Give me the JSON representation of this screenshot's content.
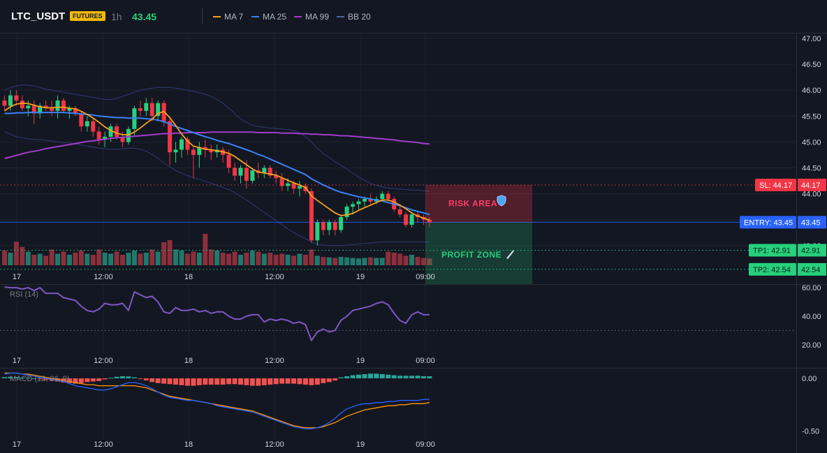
{
  "header": {
    "symbol": "LTC_USDT",
    "badge": "FUTURES",
    "timeframe": "1h",
    "price": "43.45",
    "legend": [
      {
        "label": "MA 7",
        "color": "#f7a21b"
      },
      {
        "label": "MA 25",
        "color": "#3b82f6"
      },
      {
        "label": "MA 99",
        "color": "#a23dc9"
      },
      {
        "label": "BB 20",
        "color": "#3a4a8c"
      }
    ]
  },
  "colors": {
    "background": "#131722",
    "up": "#26d07c",
    "down": "#f23645",
    "volume_up": "#1f7a6e",
    "volume_down": "#8c2f3c",
    "entry": "#2962ff",
    "sl": "#f23645",
    "tp": "#26d07c",
    "rsi": "#7e57c2",
    "macd_line": "#2962ff",
    "signal_line": "#ff9800",
    "hist_pos": "#26a69a",
    "hist_neg": "#ef5350"
  },
  "annotations": {
    "risk_label": "RISK AREA",
    "risk_icon": "shield-icon",
    "profit_label": "PROFIT ZONE",
    "profit_icon": "rocket-icon"
  },
  "chart_data": [
    {
      "type": "candlestick",
      "title": "LTC_USDT",
      "x_ticks": [
        "17",
        "12:00",
        "18",
        "12:00",
        "19",
        "09:00"
      ],
      "y_ticks": [
        "47.00",
        "46.50",
        "46.00",
        "45.50",
        "45.00",
        "44.50",
        "44.00",
        "43.50",
        "43.00"
      ],
      "ylim": [
        42.62,
        47.08
      ],
      "ohlc": [
        [
          45.8,
          45.9,
          45.6,
          45.7
        ],
        [
          45.7,
          46.0,
          45.6,
          45.9
        ],
        [
          45.9,
          46.0,
          45.7,
          45.8
        ],
        [
          45.8,
          45.9,
          45.6,
          45.65
        ],
        [
          45.65,
          45.8,
          45.5,
          45.7
        ],
        [
          45.7,
          45.8,
          45.35,
          45.55
        ],
        [
          45.55,
          45.75,
          45.45,
          45.7
        ],
        [
          45.7,
          45.8,
          45.6,
          45.65
        ],
        [
          45.65,
          45.8,
          45.5,
          45.6
        ],
        [
          45.6,
          45.9,
          45.45,
          45.8
        ],
        [
          45.8,
          45.85,
          45.55,
          45.6
        ],
        [
          45.6,
          45.7,
          45.45,
          45.65
        ],
        [
          45.65,
          45.7,
          45.5,
          45.55
        ],
        [
          45.55,
          45.6,
          45.2,
          45.3
        ],
        [
          45.3,
          45.5,
          45.2,
          45.4
        ],
        [
          45.4,
          45.45,
          45.1,
          45.2
        ],
        [
          45.2,
          45.3,
          44.95,
          45.05
        ],
        [
          45.05,
          45.2,
          44.9,
          45.1
        ],
        [
          45.1,
          45.35,
          45.0,
          45.3
        ],
        [
          45.3,
          45.35,
          45.05,
          45.1
        ],
        [
          45.1,
          45.2,
          44.9,
          45.0
        ],
        [
          45.0,
          45.3,
          44.95,
          45.25
        ],
        [
          45.25,
          45.7,
          45.1,
          45.65
        ],
        [
          45.65,
          45.8,
          45.5,
          45.6
        ],
        [
          45.6,
          45.85,
          45.5,
          45.75
        ],
        [
          45.75,
          45.85,
          45.4,
          45.5
        ],
        [
          45.5,
          45.8,
          45.4,
          45.75
        ],
        [
          45.75,
          45.8,
          45.3,
          45.4
        ],
        [
          45.4,
          45.5,
          44.55,
          44.8
        ],
        [
          44.8,
          45.0,
          44.6,
          44.85
        ],
        [
          44.85,
          45.1,
          44.7,
          45.05
        ],
        [
          45.05,
          45.1,
          44.75,
          44.85
        ],
        [
          44.85,
          44.9,
          44.3,
          44.75
        ],
        [
          44.75,
          45.0,
          44.5,
          44.9
        ],
        [
          44.9,
          45.05,
          44.7,
          44.85
        ],
        [
          44.85,
          44.95,
          44.65,
          44.8
        ],
        [
          44.8,
          44.95,
          44.7,
          44.85
        ],
        [
          44.85,
          44.9,
          44.6,
          44.75
        ],
        [
          44.75,
          44.85,
          44.4,
          44.5
        ],
        [
          44.5,
          44.6,
          44.25,
          44.35
        ],
        [
          44.35,
          44.55,
          44.2,
          44.5
        ],
        [
          44.5,
          44.65,
          44.1,
          44.25
        ],
        [
          44.25,
          44.5,
          44.2,
          44.45
        ],
        [
          44.45,
          44.6,
          44.3,
          44.4
        ],
        [
          44.4,
          44.55,
          44.3,
          44.5
        ],
        [
          44.5,
          44.55,
          44.3,
          44.35
        ],
        [
          44.35,
          44.45,
          44.2,
          44.3
        ],
        [
          44.3,
          44.4,
          44.05,
          44.15
        ],
        [
          44.15,
          44.3,
          44.05,
          44.2
        ],
        [
          44.2,
          44.25,
          44.0,
          44.1
        ],
        [
          44.1,
          44.25,
          43.95,
          44.15
        ],
        [
          44.15,
          44.2,
          44.0,
          44.05
        ],
        [
          44.05,
          44.1,
          43.05,
          43.1
        ],
        [
          43.1,
          43.5,
          43.0,
          43.45
        ],
        [
          43.45,
          43.5,
          43.2,
          43.3
        ],
        [
          43.3,
          43.5,
          43.2,
          43.45
        ],
        [
          43.45,
          43.5,
          43.2,
          43.3
        ],
        [
          43.3,
          43.6,
          43.25,
          43.55
        ],
        [
          43.55,
          43.8,
          43.5,
          43.75
        ],
        [
          43.75,
          43.85,
          43.6,
          43.8
        ],
        [
          43.8,
          43.9,
          43.7,
          43.85
        ],
        [
          43.85,
          43.95,
          43.75,
          43.9
        ],
        [
          43.9,
          44.0,
          43.8,
          43.85
        ],
        [
          43.85,
          43.95,
          43.8,
          43.9
        ],
        [
          43.9,
          44.05,
          43.85,
          44.0
        ],
        [
          44.0,
          44.05,
          43.85,
          43.9
        ],
        [
          43.9,
          43.95,
          43.65,
          43.7
        ],
        [
          43.7,
          43.8,
          43.55,
          43.6
        ],
        [
          43.6,
          43.65,
          43.35,
          43.4
        ],
        [
          43.4,
          43.65,
          43.35,
          43.6
        ],
        [
          43.6,
          43.65,
          43.45,
          43.55
        ],
        [
          43.55,
          43.6,
          43.4,
          43.5
        ],
        [
          43.5,
          43.55,
          43.35,
          43.45
        ]
      ],
      "volume": [
        28,
        24,
        45,
        35,
        26,
        20,
        22,
        18,
        30,
        22,
        26,
        20,
        24,
        28,
        22,
        20,
        30,
        24,
        22,
        26,
        20,
        24,
        28,
        22,
        24,
        30,
        26,
        44,
        48,
        30,
        28,
        22,
        26,
        24,
        60,
        30,
        28,
        24,
        22,
        26,
        20,
        24,
        28,
        26,
        22,
        24,
        20,
        22,
        20,
        18,
        22,
        20,
        30,
        18,
        16,
        15,
        14,
        16,
        15,
        14,
        13,
        14,
        15,
        14,
        14,
        26,
        24,
        22,
        18,
        20,
        16,
        14,
        13
      ],
      "ma7": [
        45.6,
        45.68,
        45.73,
        45.75,
        45.74,
        45.71,
        45.68,
        45.66,
        45.66,
        45.67,
        45.67,
        45.65,
        45.64,
        45.59,
        45.53,
        45.46,
        45.38,
        45.29,
        45.22,
        45.17,
        45.14,
        45.14,
        45.19,
        45.27,
        45.36,
        45.44,
        45.55,
        45.59,
        45.47,
        45.32,
        45.15,
        45.02,
        44.92,
        44.89,
        44.86,
        44.85,
        44.83,
        44.81,
        44.78,
        44.72,
        44.64,
        44.56,
        44.48,
        44.42,
        44.4,
        44.38,
        44.36,
        44.31,
        44.26,
        44.21,
        44.17,
        44.12,
        43.96,
        43.87,
        43.79,
        43.71,
        43.63,
        43.58,
        43.59,
        43.62,
        43.68,
        43.73,
        43.78,
        43.83,
        43.88,
        43.88,
        43.84,
        43.78,
        43.71,
        43.63,
        43.57,
        43.53,
        43.49
      ],
      "ma25": [
        45.55,
        45.55,
        45.56,
        45.56,
        45.57,
        45.57,
        45.57,
        45.57,
        45.57,
        45.57,
        45.57,
        45.56,
        45.55,
        45.54,
        45.53,
        45.52,
        45.5,
        45.49,
        45.48,
        45.47,
        45.47,
        45.46,
        45.46,
        45.46,
        45.45,
        45.44,
        45.42,
        45.39,
        45.35,
        45.3,
        45.26,
        45.22,
        45.18,
        45.14,
        45.1,
        45.07,
        45.03,
        45.0,
        44.97,
        44.93,
        44.89,
        44.85,
        44.81,
        44.76,
        44.72,
        44.67,
        44.62,
        44.57,
        44.52,
        44.47,
        44.42,
        44.37,
        44.29,
        44.23,
        44.17,
        44.12,
        44.07,
        44.03,
        44.0,
        43.97,
        43.94,
        43.92,
        43.9,
        43.88,
        43.86,
        43.83,
        43.8,
        43.77,
        43.73,
        43.69,
        43.66,
        43.63,
        43.6
      ],
      "ma99": [
        44.68,
        44.71,
        44.74,
        44.77,
        44.8,
        44.82,
        44.84,
        44.87,
        44.89,
        44.91,
        44.93,
        44.95,
        44.97,
        44.99,
        45.01,
        45.02,
        45.04,
        45.05,
        45.07,
        45.08,
        45.09,
        45.1,
        45.11,
        45.12,
        45.13,
        45.14,
        45.15,
        45.16,
        45.16,
        45.17,
        45.17,
        45.18,
        45.18,
        45.18,
        45.18,
        45.19,
        45.19,
        45.19,
        45.19,
        45.19,
        45.19,
        45.19,
        45.19,
        45.18,
        45.18,
        45.18,
        45.18,
        45.17,
        45.17,
        45.17,
        45.16,
        45.16,
        45.15,
        45.15,
        45.14,
        45.14,
        45.13,
        45.12,
        45.12,
        45.11,
        45.1,
        45.09,
        45.08,
        45.07,
        45.06,
        45.05,
        45.04,
        45.02,
        45.01,
        45.0,
        44.99,
        44.97,
        44.96
      ],
      "bb_upper": [
        46.0,
        46.05,
        46.08,
        46.1,
        46.1,
        46.08,
        46.05,
        46.02,
        46.0,
        45.98,
        45.96,
        45.94,
        45.92,
        45.9,
        45.88,
        45.86,
        45.84,
        45.82,
        45.82,
        45.84,
        45.88,
        45.92,
        45.96,
        46.0,
        46.02,
        46.04,
        46.05,
        46.05,
        46.05,
        46.04,
        46.02,
        46.0,
        45.98,
        45.95,
        45.92,
        45.88,
        45.82,
        45.75,
        45.65,
        45.55,
        45.45,
        45.38,
        45.32,
        45.3,
        45.28,
        45.27,
        45.26,
        45.25,
        45.24,
        45.22,
        45.18,
        45.1,
        45.0,
        44.88,
        44.78,
        44.7,
        44.62,
        44.55,
        44.48,
        44.4,
        44.32,
        44.26,
        44.2,
        44.16,
        44.13,
        44.11,
        44.1,
        44.09,
        44.08,
        44.07,
        44.07,
        44.06,
        44.05
      ],
      "bb_lower": [
        45.2,
        45.15,
        45.1,
        45.08,
        45.06,
        45.05,
        45.04,
        45.03,
        45.02,
        45.0,
        44.99,
        44.98,
        44.96,
        44.94,
        44.92,
        44.9,
        44.88,
        44.87,
        44.86,
        44.86,
        44.87,
        44.88,
        44.88,
        44.86,
        44.82,
        44.76,
        44.68,
        44.6,
        44.52,
        44.45,
        44.4,
        44.35,
        44.31,
        44.28,
        44.24,
        44.2,
        44.16,
        44.12,
        44.08,
        44.02,
        43.95,
        43.88,
        43.8,
        43.72,
        43.64,
        43.56,
        43.48,
        43.4,
        43.32,
        43.25,
        43.19,
        43.13,
        43.07,
        43.03,
        43.01,
        43.0,
        43.0,
        43.0,
        43.01,
        43.02,
        43.03,
        43.04,
        43.05,
        43.06,
        43.07,
        43.07,
        43.07,
        43.07,
        43.07,
        43.07,
        43.07,
        43.07,
        43.07
      ],
      "levels": [
        {
          "name": "SL",
          "label": "SL: 44.17",
          "value": 44.17,
          "axis_label": "44.17"
        },
        {
          "name": "ENTRY",
          "label": "ENTRY: 43.45",
          "value": 43.45,
          "axis_label": "43.45"
        },
        {
          "name": "TP1",
          "label": "TP1: 42.91",
          "value": 42.91,
          "axis_label": "42.91"
        },
        {
          "name": "TP2",
          "label": "TP2: 42.54",
          "value": 42.54,
          "axis_label": "42.54"
        }
      ]
    },
    {
      "type": "line",
      "title": "RSI (14)",
      "x_ticks": [
        "17",
        "12:00",
        "18",
        "12:00",
        "19",
        "09:00"
      ],
      "y_ticks": [
        "60.00",
        "40.00",
        "20.00"
      ],
      "ylim": [
        17,
        62
      ],
      "reference": 30,
      "values": [
        60.5,
        60,
        60,
        59,
        60,
        58,
        60,
        56,
        56,
        56,
        53,
        52,
        51,
        47,
        44,
        43,
        45,
        49,
        48,
        48,
        49,
        44,
        57,
        55,
        53,
        54,
        50,
        43,
        42,
        46,
        44,
        44,
        45,
        43,
        44,
        42,
        43,
        43,
        40,
        38,
        38,
        40,
        41,
        41,
        36,
        38,
        37,
        38,
        37,
        35,
        36,
        34,
        23,
        29,
        31,
        29,
        30,
        37,
        40,
        44,
        45,
        46,
        47,
        49,
        50,
        48,
        42,
        37,
        35,
        41,
        43,
        41,
        41
      ]
    },
    {
      "type": "line",
      "title": "MACD (12, 26, 9)",
      "x_ticks": [
        "17",
        "12:00",
        "18",
        "12:00",
        "19",
        "09:00"
      ],
      "y_ticks": [
        "0.00",
        "-0.50"
      ],
      "ylim": [
        -0.55,
        0.08
      ],
      "macd": [
        0.04,
        0.05,
        0.05,
        0.04,
        0.03,
        0.02,
        0.01,
        0.0,
        -0.01,
        -0.02,
        -0.03,
        -0.05,
        -0.07,
        -0.08,
        -0.09,
        -0.1,
        -0.11,
        -0.11,
        -0.1,
        -0.08,
        -0.06,
        -0.04,
        -0.04,
        -0.05,
        -0.07,
        -0.1,
        -0.13,
        -0.16,
        -0.18,
        -0.19,
        -0.2,
        -0.21,
        -0.21,
        -0.22,
        -0.23,
        -0.24,
        -0.26,
        -0.27,
        -0.28,
        -0.29,
        -0.3,
        -0.31,
        -0.32,
        -0.34,
        -0.36,
        -0.38,
        -0.4,
        -0.42,
        -0.44,
        -0.46,
        -0.47,
        -0.48,
        -0.48,
        -0.47,
        -0.45,
        -0.42,
        -0.38,
        -0.33,
        -0.29,
        -0.27,
        -0.25,
        -0.24,
        -0.24,
        -0.23,
        -0.23,
        -0.22,
        -0.22,
        -0.21,
        -0.21,
        -0.21,
        -0.21,
        -0.2,
        -0.2
      ],
      "signal": [
        0.05,
        0.05,
        0.05,
        0.04,
        0.04,
        0.03,
        0.02,
        0.01,
        0.0,
        -0.01,
        -0.02,
        -0.03,
        -0.04,
        -0.05,
        -0.06,
        -0.06,
        -0.07,
        -0.07,
        -0.07,
        -0.07,
        -0.07,
        -0.07,
        -0.07,
        -0.08,
        -0.09,
        -0.11,
        -0.13,
        -0.15,
        -0.17,
        -0.18,
        -0.19,
        -0.2,
        -0.21,
        -0.22,
        -0.23,
        -0.24,
        -0.25,
        -0.26,
        -0.27,
        -0.28,
        -0.29,
        -0.3,
        -0.31,
        -0.33,
        -0.35,
        -0.37,
        -0.39,
        -0.41,
        -0.43,
        -0.45,
        -0.46,
        -0.47,
        -0.47,
        -0.47,
        -0.46,
        -0.44,
        -0.42,
        -0.39,
        -0.36,
        -0.34,
        -0.32,
        -0.3,
        -0.29,
        -0.28,
        -0.27,
        -0.26,
        -0.26,
        -0.25,
        -0.25,
        -0.24,
        -0.24,
        -0.24,
        -0.23
      ],
      "histogram": [
        0.012,
        0.015,
        0.012,
        0.008,
        0.005,
        0.0,
        -0.008,
        -0.015,
        -0.02,
        -0.03,
        -0.04,
        -0.045,
        -0.05,
        -0.045,
        -0.035,
        -0.03,
        -0.025,
        -0.01,
        0.005,
        0.015,
        0.02,
        0.018,
        0.01,
        -0.005,
        -0.02,
        -0.035,
        -0.045,
        -0.05,
        -0.055,
        -0.06,
        -0.065,
        -0.07,
        -0.07,
        -0.065,
        -0.06,
        -0.06,
        -0.06,
        -0.06,
        -0.055,
        -0.055,
        -0.06,
        -0.065,
        -0.07,
        -0.07,
        -0.065,
        -0.06,
        -0.055,
        -0.05,
        -0.05,
        -0.05,
        -0.055,
        -0.06,
        -0.065,
        -0.06,
        -0.045,
        -0.035,
        -0.02,
        0.01,
        0.02,
        0.03,
        0.035,
        0.04,
        0.045,
        0.045,
        0.04,
        0.035,
        0.03,
        0.025,
        0.025,
        0.025,
        0.025,
        0.02,
        0.02
      ]
    }
  ]
}
